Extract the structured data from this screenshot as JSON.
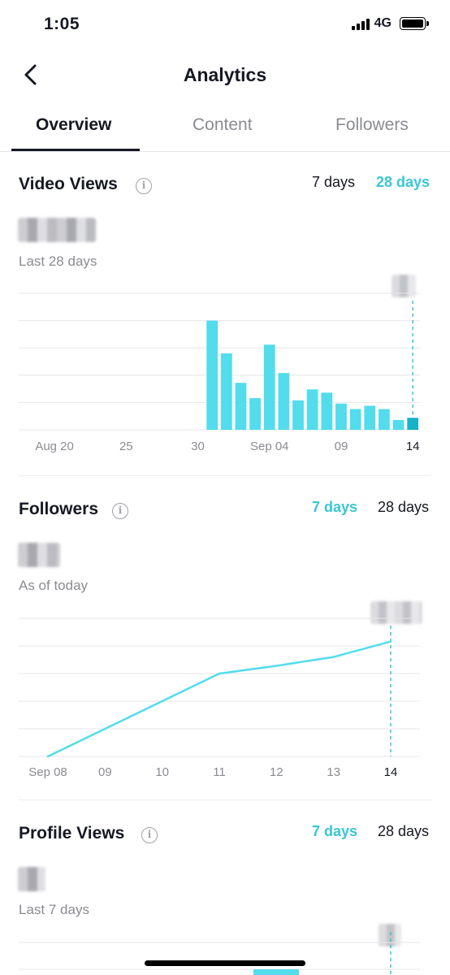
{
  "status_bar": {
    "time": "1:05",
    "network": "4G"
  },
  "header": {
    "title": "Analytics",
    "back_icon": "chevron-left-icon"
  },
  "tabs": [
    {
      "label": "Overview",
      "active": true
    },
    {
      "label": "Content",
      "active": false
    },
    {
      "label": "Followers",
      "active": false
    }
  ],
  "accent_color": "#39c6d6",
  "video_views": {
    "title": "Video Views",
    "range_7": "7 days",
    "range_28": "28 days",
    "active_range": "28 days",
    "sub_label": "Last 28 days"
  },
  "followers": {
    "title": "Followers",
    "range_7": "7 days",
    "range_28": "28 days",
    "active_range": "7 days",
    "sub_label": "As of today"
  },
  "profile_views": {
    "title": "Profile Views",
    "range_7": "7 days",
    "range_28": "28 days",
    "active_range": "7 days",
    "sub_label": "Last 7 days"
  },
  "chart_data": [
    {
      "type": "bar",
      "x": [
        "Aug 18",
        "Aug 19",
        "Aug 20",
        "Aug 21",
        "Aug 22",
        "Aug 23",
        "Aug 24",
        "Aug 25",
        "Aug 26",
        "Aug 27",
        "Aug 28",
        "Aug 29",
        "Aug 30",
        "Aug 31",
        "Sep 01",
        "Sep 02",
        "Sep 03",
        "Sep 04",
        "Sep 05",
        "Sep 06",
        "Sep 07",
        "Sep 08",
        "Sep 09",
        "Sep 10",
        "Sep 11",
        "Sep 12",
        "Sep 13",
        "Sep 14"
      ],
      "values": [
        0,
        0,
        0,
        0,
        0,
        0,
        0,
        0,
        0,
        0,
        0,
        0,
        0,
        100,
        70,
        43,
        29,
        78,
        52,
        27,
        37,
        34,
        24,
        19,
        22,
        19,
        9,
        11
      ],
      "tick_labels": [
        "Aug 20",
        "25",
        "30",
        "Sep 04",
        "09",
        "14"
      ],
      "tick_index": [
        2,
        7,
        12,
        17,
        22,
        27
      ],
      "ylim": [
        0,
        125
      ],
      "grid": true,
      "highlight_last": true,
      "bar_color": "#52dcec",
      "highlight_color": "#17b2c8"
    },
    {
      "type": "line",
      "x": [
        "Sep 08",
        "09",
        "10",
        "11",
        "12",
        "13",
        "14"
      ],
      "values": [
        0,
        25,
        50,
        75,
        82,
        90,
        104
      ],
      "ylim": [
        0,
        125
      ],
      "grid": true,
      "highlight_last": true,
      "line_color": "#52dcec"
    }
  ]
}
